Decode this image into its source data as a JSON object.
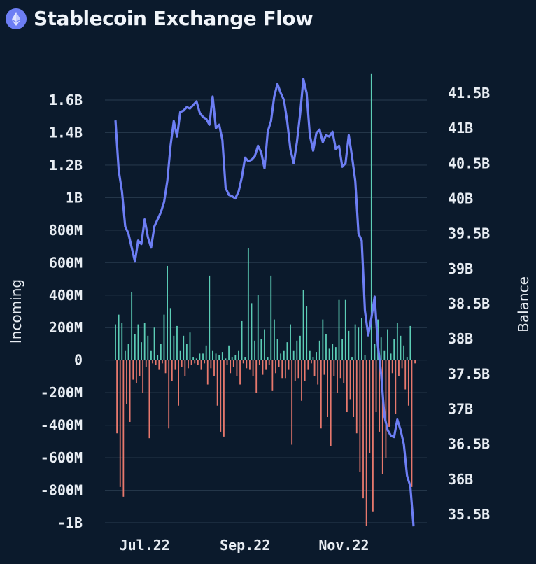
{
  "header": {
    "title": "Stablecoin Exchange Flow",
    "icon": "ethereum-icon"
  },
  "colors": {
    "background": "#0b1a2c",
    "grid": "#243649",
    "incoming": "#5ccdb6",
    "outgoing": "#e7786d",
    "balance": "#6d7ef4",
    "icon_bg": "#6d7ef4"
  },
  "chart_data": {
    "type": "bar+line",
    "title": "Stablecoin Exchange Flow",
    "xlabel": "",
    "ylabel_left": "Incoming",
    "ylabel_right": "Balance",
    "x_ticks": [
      {
        "date": "2022-07-01",
        "label": "Jul.22"
      },
      {
        "date": "2022-09-01",
        "label": "Sep.22"
      },
      {
        "date": "2022-11-01",
        "label": "Nov.22"
      }
    ],
    "x_range": [
      "2022-06-13",
      "2022-12-14"
    ],
    "y_left": {
      "range_millions": [
        -1000,
        1600
      ],
      "ticks": [
        1600,
        1400,
        1200,
        1000,
        800,
        600,
        400,
        200,
        0,
        -200,
        -400,
        -600,
        -800,
        -1000
      ],
      "tick_labels": [
        "1.6B",
        "1.4B",
        "1.2B",
        "1B",
        "800M",
        "600M",
        "400M",
        "200M",
        "0",
        "-200M",
        "-400M",
        "-600M",
        "-800M",
        "-1B"
      ]
    },
    "y_right": {
      "range_billions": [
        35.35,
        41.63
      ],
      "ticks": [
        41.5,
        41,
        40.5,
        40,
        39.5,
        39,
        38.5,
        38,
        37.5,
        37,
        36.5,
        36,
        35.5
      ],
      "tick_labels": [
        "41.5B",
        "41B",
        "40.5B",
        "40B",
        "39.5B",
        "39B",
        "38.5B",
        "38B",
        "37.5B",
        "37B",
        "36.5B",
        "36B",
        "35.5B"
      ]
    },
    "grid": true,
    "dates": [
      "2022-06-13",
      "2022-06-15",
      "2022-06-17",
      "2022-06-19",
      "2022-06-21",
      "2022-06-23",
      "2022-06-25",
      "2022-06-27",
      "2022-06-29",
      "2022-07-01",
      "2022-07-03",
      "2022-07-05",
      "2022-07-07",
      "2022-07-09",
      "2022-07-11",
      "2022-07-13",
      "2022-07-15",
      "2022-07-17",
      "2022-07-19",
      "2022-07-21",
      "2022-07-23",
      "2022-07-25",
      "2022-07-27",
      "2022-07-29",
      "2022-07-31",
      "2022-08-02",
      "2022-08-04",
      "2022-08-06",
      "2022-08-08",
      "2022-08-10",
      "2022-08-12",
      "2022-08-14",
      "2022-08-16",
      "2022-08-18",
      "2022-08-20",
      "2022-08-22",
      "2022-08-24",
      "2022-08-26",
      "2022-08-28",
      "2022-08-30",
      "2022-09-01",
      "2022-09-03",
      "2022-09-05",
      "2022-09-07",
      "2022-09-09",
      "2022-09-11",
      "2022-09-13",
      "2022-09-15",
      "2022-09-17",
      "2022-09-19",
      "2022-09-21",
      "2022-09-23",
      "2022-09-25",
      "2022-09-27",
      "2022-09-29",
      "2022-10-01",
      "2022-10-03",
      "2022-10-05",
      "2022-10-07",
      "2022-10-09",
      "2022-10-11",
      "2022-10-13",
      "2022-10-15",
      "2022-10-17",
      "2022-10-19",
      "2022-10-21",
      "2022-10-23",
      "2022-10-25",
      "2022-10-27",
      "2022-10-29",
      "2022-10-31",
      "2022-11-02",
      "2022-11-04",
      "2022-11-06",
      "2022-11-08",
      "2022-11-10",
      "2022-11-12",
      "2022-11-14",
      "2022-11-16",
      "2022-11-18",
      "2022-11-20",
      "2022-11-22",
      "2022-11-24",
      "2022-11-26",
      "2022-11-28",
      "2022-11-30",
      "2022-12-02",
      "2022-12-04",
      "2022-12-06",
      "2022-12-08",
      "2022-12-10",
      "2022-12-12",
      "2022-12-14"
    ],
    "series": [
      {
        "name": "Incoming",
        "type": "bar",
        "unit": "M",
        "values": [
          220,
          280,
          230,
          60,
          100,
          420,
          160,
          220,
          110,
          230,
          150,
          60,
          200,
          30,
          100,
          280,
          580,
          320,
          150,
          210,
          60,
          150,
          100,
          170,
          20,
          10,
          40,
          40,
          90,
          520,
          60,
          40,
          30,
          50,
          10,
          90,
          20,
          30,
          60,
          240,
          20,
          690,
          350,
          120,
          400,
          130,
          190,
          20,
          520,
          250,
          130,
          40,
          60,
          110,
          220,
          60,
          120,
          150,
          430,
          330,
          60,
          20,
          50,
          120,
          250,
          160,
          70,
          100,
          80,
          370,
          130,
          370,
          180,
          20,
          220,
          200,
          260,
          30,
          0,
          1760,
          100,
          250,
          140,
          60,
          190,
          40,
          130,
          230,
          150,
          90,
          20,
          210,
          0
        ]
      },
      {
        "name": "Outgoing",
        "type": "bar",
        "unit": "M",
        "values": [
          -450,
          -780,
          -840,
          -270,
          -380,
          -120,
          -140,
          -100,
          -200,
          -40,
          -480,
          -20,
          -30,
          -60,
          -20,
          -80,
          -420,
          -130,
          -60,
          -280,
          -40,
          -100,
          -50,
          -30,
          -20,
          -30,
          -60,
          -20,
          -150,
          -50,
          -100,
          -280,
          -440,
          -470,
          -30,
          -80,
          -40,
          -100,
          -150,
          -20,
          -50,
          -60,
          -100,
          -200,
          -30,
          -90,
          -60,
          -30,
          -190,
          -80,
          -40,
          -110,
          -110,
          -60,
          -520,
          -130,
          -110,
          -250,
          -130,
          -60,
          -20,
          -100,
          -150,
          -420,
          -90,
          -350,
          -530,
          -100,
          -200,
          -110,
          -140,
          -320,
          -240,
          -350,
          -450,
          -690,
          -850,
          -1020,
          -570,
          -930,
          -320,
          -440,
          -700,
          -600,
          -410,
          -80,
          -330,
          -100,
          -50,
          -180,
          -280,
          -780,
          -20
        ]
      },
      {
        "name": "Balance",
        "type": "line",
        "unit": "B",
        "values": [
          41.11,
          40.4,
          40.1,
          39.6,
          39.5,
          39.3,
          39.1,
          39.4,
          39.35,
          39.7,
          39.45,
          39.3,
          39.6,
          39.7,
          39.8,
          39.95,
          40.25,
          40.75,
          41.1,
          40.88,
          41.23,
          41.25,
          41.3,
          41.28,
          41.33,
          41.38,
          41.22,
          41.16,
          41.13,
          41.05,
          41.45,
          41.0,
          41.05,
          40.83,
          40.15,
          40.05,
          40.03,
          40.0,
          40.1,
          40.3,
          40.58,
          40.53,
          40.55,
          40.6,
          40.75,
          40.65,
          40.43,
          40.95,
          41.1,
          41.45,
          41.63,
          41.5,
          41.4,
          41.1,
          40.7,
          40.5,
          40.8,
          41.2,
          41.7,
          41.5,
          40.9,
          40.68,
          40.93,
          40.98,
          40.8,
          40.9,
          40.88,
          40.95,
          40.7,
          40.75,
          40.45,
          40.5,
          40.9,
          40.6,
          40.25,
          39.5,
          39.4,
          38.4,
          38.05,
          38.3,
          38.6,
          37.9,
          37.5,
          36.9,
          36.7,
          36.62,
          36.6,
          36.85,
          36.7,
          36.5,
          36.05,
          35.9,
          35.33
        ]
      }
    ]
  }
}
